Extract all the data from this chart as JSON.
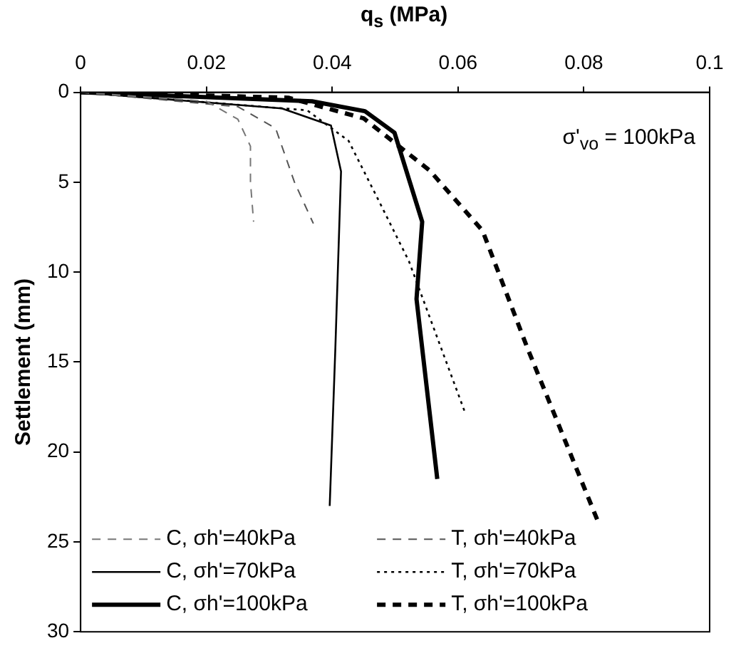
{
  "chart_data": {
    "type": "line",
    "xlabel": "q$_{s}$ (MPa)",
    "ylabel": "Settlement (mm)",
    "xlim": [
      0,
      0.1
    ],
    "xticks": [
      0,
      0.02,
      0.04,
      0.06,
      0.08,
      0.1
    ],
    "ylim": [
      30,
      0
    ],
    "yticks": [
      0,
      5,
      10,
      15,
      20,
      25,
      30
    ],
    "grid": false,
    "legend": "bottom",
    "marker": "none",
    "annotations": [
      "σ'$_{vo}$ = 100kPa"
    ],
    "series": [
      {
        "name": "C, σh'=40kPa",
        "color": "#777777",
        "line_style": "dashed",
        "x": [
          0,
          0.02,
          0.025,
          0.027,
          0.027,
          0.0275
        ],
        "values": [
          0,
          0.5,
          1.5,
          3,
          5,
          7.2
        ]
      },
      {
        "name": "T, σh'=40kPa",
        "color": "#555555",
        "line_style": "dashed",
        "x": [
          0,
          0.025,
          0.031,
          0.034,
          0.037
        ],
        "values": [
          0,
          0.8,
          2,
          5,
          7.3
        ]
      },
      {
        "name": "C, σh'=70kPa",
        "color": "#000000",
        "line_style": "solid",
        "x": [
          0,
          0.032,
          0.0398,
          0.0414,
          0.0405,
          0.0396
        ],
        "values": [
          0,
          0.9,
          1.85,
          4.4,
          14.2,
          23
        ]
      },
      {
        "name": "T, σh'=70kPa",
        "color": "#000000",
        "line_style": "dotted",
        "x": [
          0,
          0.036,
          0.0426,
          0.0475,
          0.0522,
          0.061
        ],
        "values": [
          0,
          1,
          2.7,
          6.1,
          9.4,
          17.7
        ]
      },
      {
        "name": "C, σh'=100kPa",
        "color": "#000000",
        "line_style": "solid",
        "x": [
          0,
          0.0368,
          0.0452,
          0.0499,
          0.0543,
          0.0534,
          0.0567
        ],
        "values": [
          0,
          0.5,
          1.05,
          2.25,
          7.2,
          11.5,
          21.5
        ]
      },
      {
        "name": "T, σh'=100kPa",
        "color": "#000000",
        "line_style": "dashed",
        "x": [
          0,
          0.033,
          0.045,
          0.0555,
          0.0639,
          0.071,
          0.0824
        ],
        "values": [
          0,
          0.3,
          1.45,
          4.35,
          7.7,
          14.2,
          24
        ]
      }
    ]
  }
}
